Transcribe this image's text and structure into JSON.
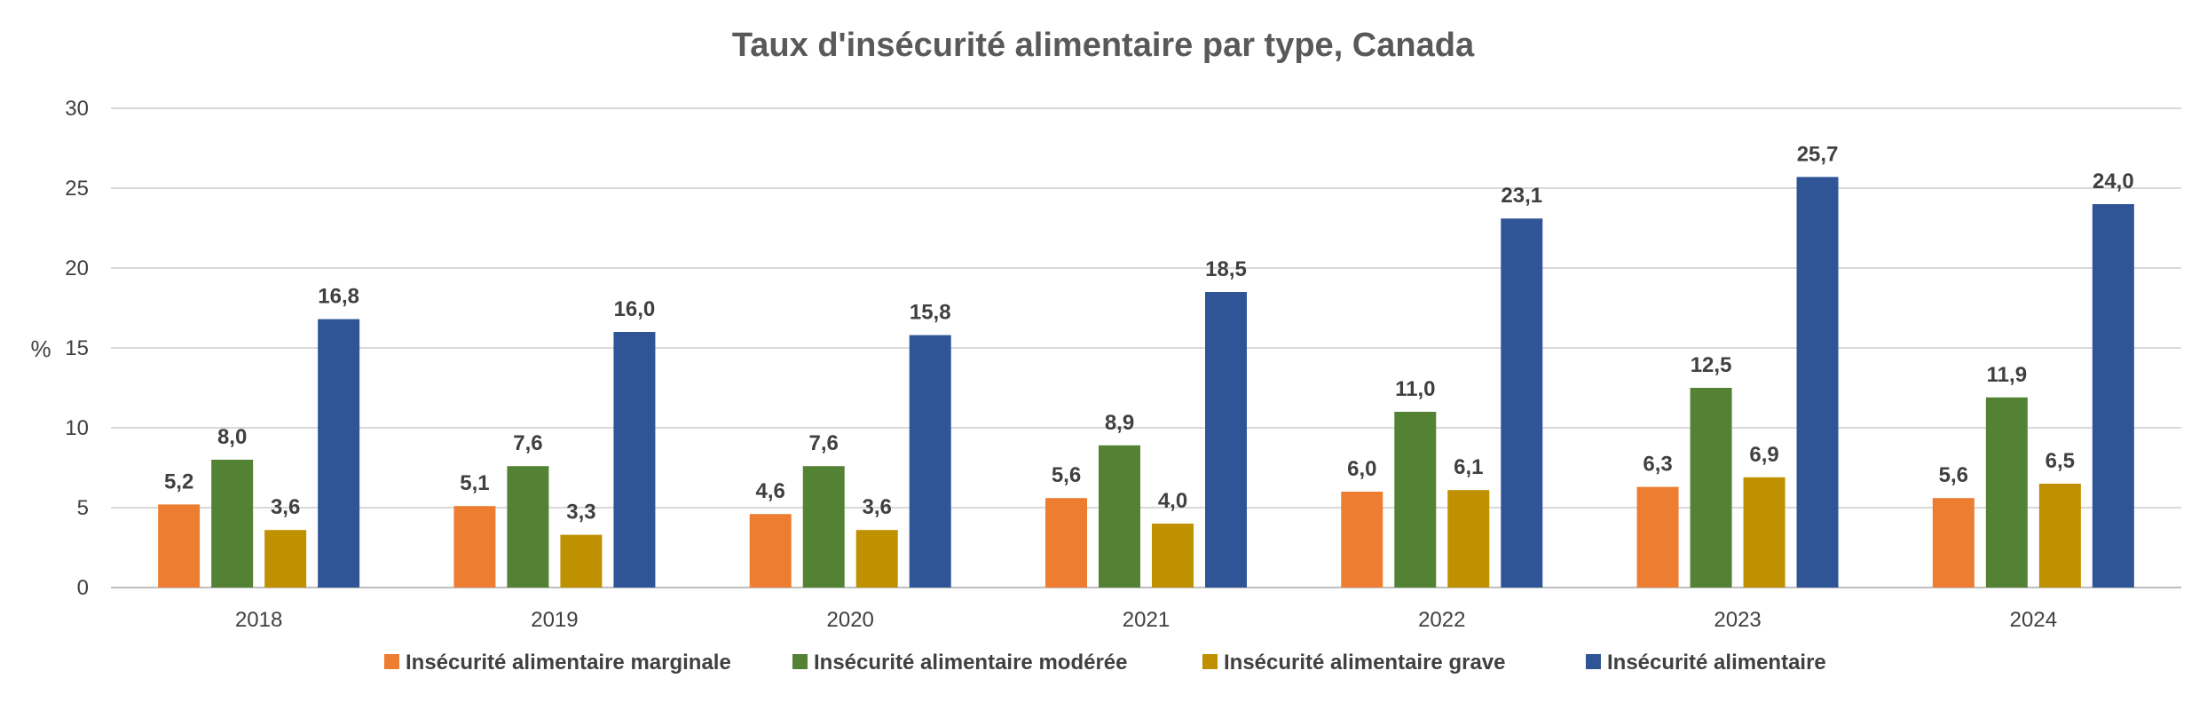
{
  "chart_data": {
    "type": "bar",
    "title": "Taux d'insécurité alimentaire par type, Canada",
    "xlabel": "",
    "ylabel": "%",
    "ylim": [
      0,
      30
    ],
    "yticks": [
      0,
      5,
      10,
      15,
      20,
      25,
      30
    ],
    "grid": true,
    "legend_position": "bottom",
    "categories": [
      "2018",
      "2019",
      "2020",
      "2021",
      "2022",
      "2023",
      "2024"
    ],
    "series": [
      {
        "name": "Insécurité alimentaire marginale",
        "color": "#ED7D31",
        "values": [
          5.2,
          5.1,
          4.6,
          5.6,
          6.0,
          6.3,
          5.6
        ],
        "labels": [
          "5,2",
          "5,1",
          "4,6",
          "5,6",
          "6,0",
          "6,3",
          "5,6"
        ]
      },
      {
        "name": "Insécurité alimentaire modérée",
        "color": "#548235",
        "values": [
          8.0,
          7.6,
          7.6,
          8.9,
          11.0,
          12.5,
          11.9
        ],
        "labels": [
          "8,0",
          "7,6",
          "7,6",
          "8,9",
          "11,0",
          "12,5",
          "11,9"
        ]
      },
      {
        "name": "Insécurité alimentaire grave",
        "color": "#BF9000",
        "values": [
          3.6,
          3.3,
          3.6,
          4.0,
          6.1,
          6.9,
          6.5
        ],
        "labels": [
          "3,6",
          "3,3",
          "3,6",
          "4,0",
          "6,1",
          "6,9",
          "6,5"
        ]
      },
      {
        "name": "Insécurité alimentaire",
        "color": "#2F5597",
        "values": [
          16.8,
          16.0,
          15.8,
          18.5,
          23.1,
          25.7,
          24.0
        ],
        "labels": [
          "16,8",
          "16,0",
          "15,8",
          "18,5",
          "23,1",
          "25,7",
          "24,0"
        ]
      }
    ]
  }
}
